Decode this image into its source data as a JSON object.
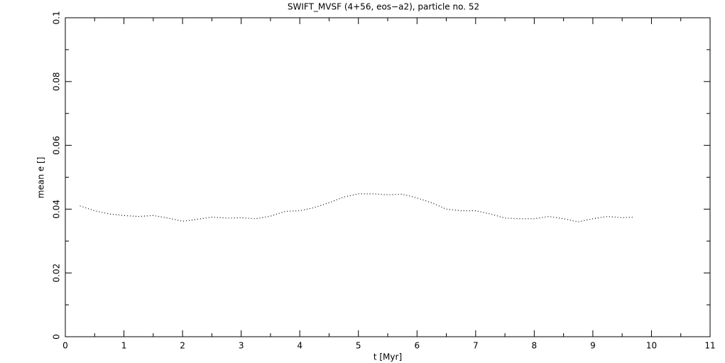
{
  "chart_data": {
    "type": "line",
    "title": "SWIFT_MVSF (4+56, eos−a2), particle no. 52",
    "x_label": "t [Myr]",
    "y_label": "mean e []",
    "x": [
      0.25,
      0.5,
      0.75,
      1.0,
      1.25,
      1.5,
      1.75,
      2.0,
      2.25,
      2.5,
      2.75,
      3.0,
      3.25,
      3.5,
      3.75,
      4.0,
      4.25,
      4.5,
      4.75,
      5.0,
      5.25,
      5.5,
      5.75,
      6.0,
      6.25,
      6.5,
      6.75,
      7.0,
      7.25,
      7.5,
      7.75,
      8.0,
      8.25,
      8.5,
      8.75,
      9.0,
      9.25,
      9.5,
      9.7
    ],
    "values": [
      0.041,
      0.0395,
      0.0385,
      0.038,
      0.0377,
      0.038,
      0.0372,
      0.0362,
      0.0368,
      0.0375,
      0.0372,
      0.0373,
      0.037,
      0.0378,
      0.0393,
      0.0395,
      0.0405,
      0.042,
      0.0438,
      0.0448,
      0.0448,
      0.0445,
      0.0447,
      0.0435,
      0.042,
      0.04,
      0.0395,
      0.0395,
      0.0385,
      0.0372,
      0.037,
      0.037,
      0.0377,
      0.037,
      0.036,
      0.037,
      0.0377,
      0.0373,
      0.0375
    ],
    "color": "#000000",
    "xlim": [
      0,
      11
    ],
    "xticks": [
      0,
      1,
      2,
      3,
      4,
      5,
      6,
      7,
      8,
      9,
      10,
      11
    ],
    "ylim": [
      0,
      0.1
    ],
    "yticks": [
      0,
      0.02,
      0.04,
      0.06,
      0.08,
      0.1
    ]
  }
}
